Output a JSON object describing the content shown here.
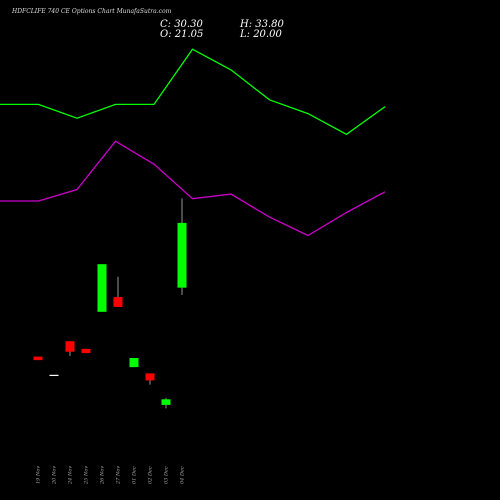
{
  "header": {
    "title": "HDFCLIFE 740  CE Options  Chart MunafaSutra.com",
    "close_label": "C: 30.30",
    "open_label": "O: 21.05",
    "high_label": "H: 33.80",
    "low_label": "L: 20.00"
  },
  "colors": {
    "background": "#000000",
    "upper_line": "#00ff00",
    "lower_line": "#cc00cc",
    "up_candle": "#00ff00",
    "down_candle": "#ff0000",
    "neutral_candle": "#ffffff",
    "wick": "#bbbbbb"
  },
  "chart_data": [
    {
      "type": "line",
      "series": [
        {
          "values": [
            72,
            72,
            66,
            72,
            72,
            96,
            87,
            74,
            68,
            59,
            71
          ],
          "color": "#00ff00"
        },
        {
          "values": [
            30,
            30,
            35,
            56,
            46,
            31,
            33,
            23,
            15,
            25,
            34
          ],
          "color": "#cc00cc"
        }
      ],
      "ylim": [
        0,
        100
      ]
    },
    {
      "type": "candlestick",
      "categories": [
        "19 Nov",
        "20 Nov",
        "24 Nov",
        "25 Nov",
        "26 Nov",
        "27 Nov",
        "01 Dec",
        "02 Dec",
        "03 Dec",
        "04 Dec"
      ],
      "candles": [
        {
          "open": 11.2,
          "high": 11.2,
          "low": 10.7,
          "close": 10.7,
          "dir": "down"
        },
        {
          "open": 8.6,
          "high": 8.6,
          "low": 8.6,
          "close": 8.6,
          "dir": "neutral"
        },
        {
          "open": 13.4,
          "high": 13.4,
          "low": 11.3,
          "close": 11.9,
          "dir": "down"
        },
        {
          "open": 12.3,
          "high": 12.3,
          "low": 11.7,
          "close": 11.7,
          "dir": "down"
        },
        {
          "open": 17.6,
          "high": 24.4,
          "low": 17.6,
          "close": 24.4,
          "dir": "up"
        },
        {
          "open": 19.7,
          "high": 22.6,
          "low": 18.3,
          "close": 18.3,
          "dir": "down"
        },
        {
          "open": 9.7,
          "high": 11.0,
          "low": 9.7,
          "close": 11.0,
          "dir": "up"
        },
        {
          "open": 8.8,
          "high": 8.8,
          "low": 7.2,
          "close": 7.8,
          "dir": "down"
        },
        {
          "open": 4.3,
          "high": 5.3,
          "low": 3.8,
          "close": 5.1,
          "dir": "up"
        },
        {
          "open": 21.05,
          "high": 33.8,
          "low": 20.0,
          "close": 30.3,
          "dir": "up"
        }
      ]
    }
  ]
}
